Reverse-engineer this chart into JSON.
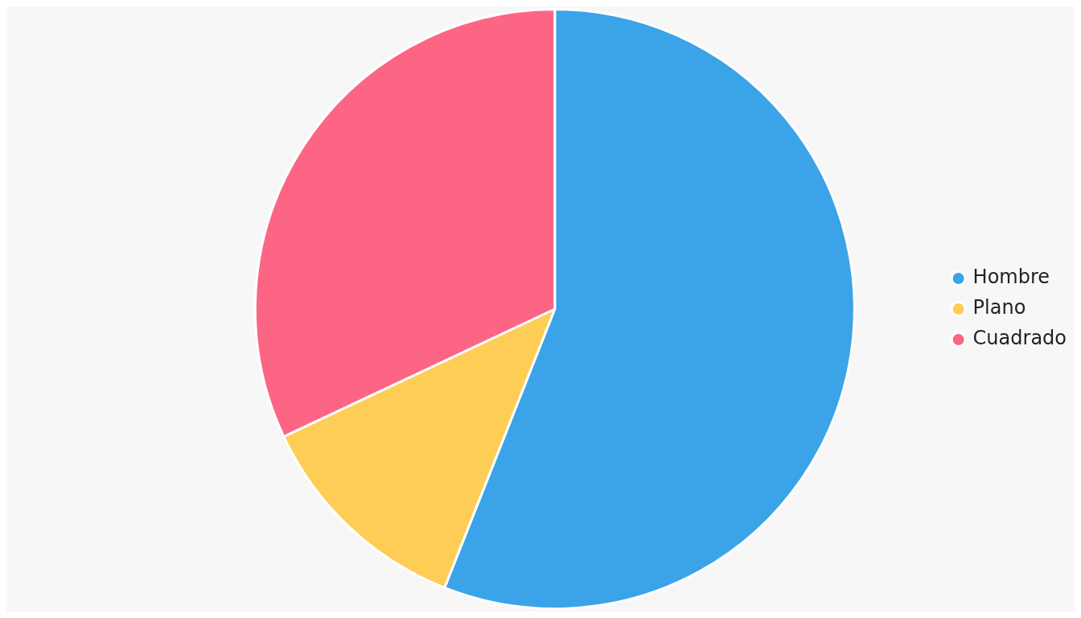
{
  "chart_data": {
    "type": "pie",
    "categories": [
      "Hombre",
      "Plano",
      "Cuadrado"
    ],
    "values": [
      56,
      12,
      32
    ],
    "colors": [
      "#3ba3e8",
      "#fdcd55",
      "#fd6584"
    ],
    "legend": "right"
  }
}
